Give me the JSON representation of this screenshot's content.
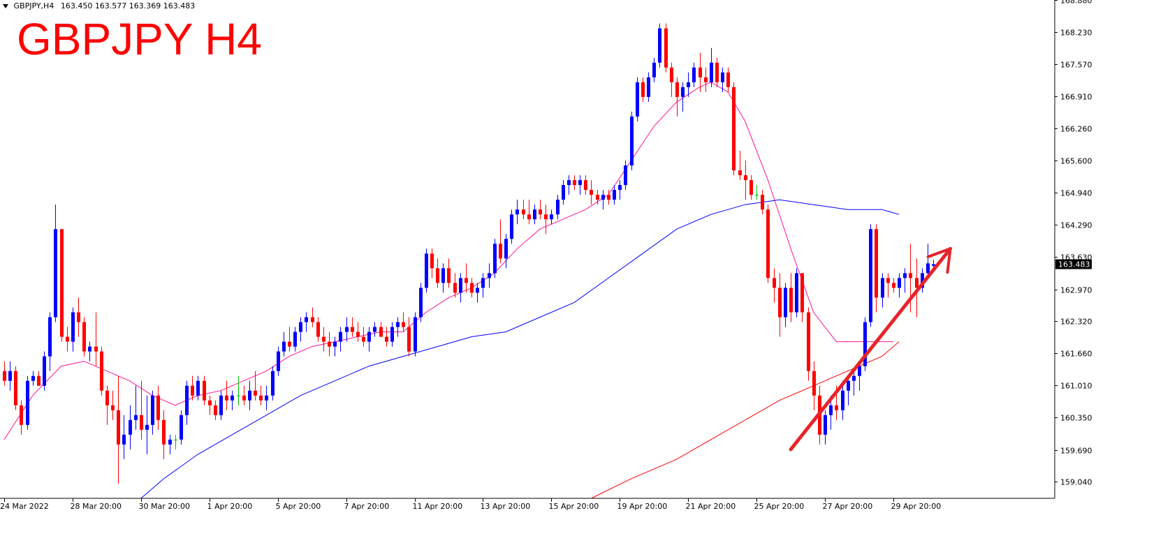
{
  "header": {
    "symbol_line": "GBPJPY,H4",
    "ohlc": "163.450 163.577 163.369 163.483",
    "big_title": "GBPJPY H4"
  },
  "colors": {
    "bull": "#0000ff",
    "bear": "#ff0000",
    "doji": "#00c000",
    "ma_fast": "#ff1493",
    "ma_mid": "#0000ff",
    "ma_slow": "#ff0000",
    "arrow": "#e8232a",
    "current_price_bg": "#000000"
  },
  "chart_data": {
    "type": "candlestick",
    "instrument": "GBPJPY",
    "timeframe": "H4",
    "ylim": [
      158.7,
      168.88
    ],
    "yticks": [
      "168.880",
      "168.230",
      "167.570",
      "166.910",
      "166.260",
      "165.600",
      "164.940",
      "164.290",
      "163.630",
      "162.970",
      "162.320",
      "161.660",
      "161.010",
      "160.350",
      "159.690",
      "159.040"
    ],
    "current_price": "163.483",
    "xtick_labels": [
      "24 Mar 2022",
      "28 Mar 20:00",
      "30 Mar 20:00",
      "1 Apr 20:00",
      "5 Apr 20:00",
      "7 Apr 20:00",
      "11 Apr 20:00",
      "13 Apr 20:00",
      "15 Apr 20:00",
      "19 Apr 20:00",
      "21 Apr 20:00",
      "25 Apr 20:00",
      "27 Apr 20:00",
      "29 Apr 20:00"
    ],
    "xtick_bars": [
      0,
      12,
      24,
      36,
      48,
      60,
      72,
      84,
      96,
      108,
      120,
      132,
      144,
      156
    ],
    "candles": [
      [
        161.3,
        161.5,
        161.0,
        161.1
      ],
      [
        161.1,
        161.5,
        160.9,
        161.3
      ],
      [
        161.3,
        161.4,
        160.5,
        160.6
      ],
      [
        160.6,
        160.7,
        160.0,
        160.2
      ],
      [
        160.2,
        161.2,
        160.1,
        161.1
      ],
      [
        161.1,
        161.3,
        161.0,
        161.2
      ],
      [
        161.2,
        161.3,
        161.0,
        161.0
      ],
      [
        161.0,
        161.7,
        160.9,
        161.6
      ],
      [
        161.6,
        162.5,
        161.3,
        162.4
      ],
      [
        162.4,
        164.7,
        162.3,
        164.2
      ],
      [
        164.2,
        164.2,
        161.9,
        162.0
      ],
      [
        162.0,
        162.2,
        161.7,
        161.9
      ],
      [
        161.9,
        162.6,
        161.7,
        162.5
      ],
      [
        162.5,
        162.8,
        162.0,
        162.3
      ],
      [
        162.3,
        162.4,
        161.6,
        161.7
      ],
      [
        161.7,
        161.9,
        161.5,
        161.8
      ],
      [
        161.8,
        162.5,
        161.4,
        161.7
      ],
      [
        161.7,
        161.8,
        160.8,
        160.9
      ],
      [
        160.9,
        161.0,
        160.2,
        160.6
      ],
      [
        160.6,
        160.9,
        160.3,
        160.5
      ],
      [
        160.5,
        161.2,
        159.0,
        159.8
      ],
      [
        159.8,
        160.4,
        159.5,
        160.0
      ],
      [
        160.0,
        160.6,
        159.7,
        160.3
      ],
      [
        160.3,
        161.0,
        160.1,
        160.4
      ],
      [
        160.4,
        161.1,
        159.9,
        160.1
      ],
      [
        160.1,
        160.8,
        159.6,
        160.2
      ],
      [
        160.2,
        160.9,
        160.0,
        160.8
      ],
      [
        160.8,
        161.0,
        160.1,
        160.3
      ],
      [
        160.3,
        160.5,
        159.5,
        159.8
      ],
      [
        159.8,
        160.0,
        159.6,
        159.9
      ],
      [
        159.9,
        160.0,
        159.7,
        159.9
      ],
      [
        159.9,
        160.5,
        159.8,
        160.4
      ],
      [
        160.4,
        161.1,
        160.2,
        161.0
      ],
      [
        161.0,
        161.2,
        160.7,
        160.8
      ],
      [
        160.8,
        161.2,
        160.7,
        161.1
      ],
      [
        161.1,
        161.2,
        160.6,
        160.7
      ],
      [
        160.7,
        160.8,
        160.4,
        160.6
      ],
      [
        160.6,
        160.7,
        160.3,
        160.4
      ],
      [
        160.4,
        160.9,
        160.3,
        160.8
      ],
      [
        160.8,
        161.1,
        160.5,
        160.7
      ],
      [
        160.7,
        160.9,
        160.5,
        160.8
      ],
      [
        160.8,
        161.2,
        160.6,
        160.8
      ],
      [
        160.8,
        161.0,
        160.6,
        160.7
      ],
      [
        160.7,
        161.1,
        160.5,
        160.9
      ],
      [
        160.9,
        161.3,
        160.7,
        160.8
      ],
      [
        160.8,
        161.0,
        160.6,
        160.7
      ],
      [
        160.7,
        161.0,
        160.5,
        160.8
      ],
      [
        160.8,
        161.4,
        160.7,
        161.3
      ],
      [
        161.3,
        161.8,
        161.2,
        161.7
      ],
      [
        161.7,
        162.1,
        161.6,
        161.9
      ],
      [
        161.9,
        162.2,
        161.7,
        161.8
      ],
      [
        161.8,
        162.2,
        161.7,
        162.1
      ],
      [
        162.1,
        162.4,
        161.9,
        162.3
      ],
      [
        162.3,
        162.5,
        162.1,
        162.4
      ],
      [
        162.4,
        162.6,
        162.2,
        162.3
      ],
      [
        162.3,
        162.4,
        161.9,
        162.0
      ],
      [
        162.0,
        162.2,
        161.7,
        161.9
      ],
      [
        161.9,
        162.1,
        161.6,
        161.8
      ],
      [
        161.8,
        162.0,
        161.6,
        161.9
      ],
      [
        161.9,
        162.2,
        161.7,
        162.1
      ],
      [
        162.1,
        162.4,
        161.9,
        162.2
      ],
      [
        162.2,
        162.4,
        162.0,
        162.1
      ],
      [
        162.1,
        162.3,
        161.9,
        162.0
      ],
      [
        162.0,
        162.2,
        161.8,
        161.9
      ],
      [
        161.9,
        162.2,
        161.7,
        162.1
      ],
      [
        162.1,
        162.3,
        162.0,
        162.2
      ],
      [
        162.2,
        162.3,
        162.0,
        162.0
      ],
      [
        162.0,
        162.2,
        161.8,
        161.9
      ],
      [
        161.9,
        162.3,
        161.8,
        162.2
      ],
      [
        162.2,
        162.4,
        162.0,
        162.3
      ],
      [
        162.3,
        162.5,
        162.1,
        162.2
      ],
      [
        162.2,
        162.4,
        161.6,
        161.7
      ],
      [
        161.7,
        162.5,
        161.6,
        162.4
      ],
      [
        162.4,
        163.1,
        162.3,
        163.0
      ],
      [
        163.0,
        163.8,
        162.9,
        163.7
      ],
      [
        163.7,
        163.8,
        163.2,
        163.4
      ],
      [
        163.4,
        163.6,
        163.0,
        163.1
      ],
      [
        163.1,
        163.5,
        162.9,
        163.4
      ],
      [
        163.4,
        163.6,
        163.0,
        163.1
      ],
      [
        163.1,
        163.3,
        162.8,
        162.9
      ],
      [
        162.9,
        163.3,
        162.7,
        163.2
      ],
      [
        163.2,
        163.5,
        162.9,
        163.1
      ],
      [
        163.1,
        163.2,
        162.8,
        162.9
      ],
      [
        162.9,
        163.1,
        162.7,
        163.0
      ],
      [
        163.0,
        163.3,
        162.8,
        163.2
      ],
      [
        163.2,
        163.5,
        163.0,
        163.3
      ],
      [
        163.3,
        164.0,
        163.2,
        163.9
      ],
      [
        163.9,
        164.4,
        163.5,
        163.6
      ],
      [
        163.6,
        164.1,
        163.4,
        164.0
      ],
      [
        164.0,
        164.6,
        163.9,
        164.5
      ],
      [
        164.5,
        164.8,
        164.3,
        164.6
      ],
      [
        164.6,
        164.8,
        164.4,
        164.5
      ],
      [
        164.5,
        164.8,
        164.3,
        164.4
      ],
      [
        164.4,
        164.7,
        164.3,
        164.6
      ],
      [
        164.6,
        164.8,
        164.4,
        164.5
      ],
      [
        164.5,
        164.7,
        164.1,
        164.4
      ],
      [
        164.4,
        164.6,
        164.3,
        164.5
      ],
      [
        164.5,
        164.9,
        164.4,
        164.8
      ],
      [
        164.8,
        165.2,
        164.7,
        165.1
      ],
      [
        165.1,
        165.3,
        164.9,
        165.2
      ],
      [
        165.2,
        165.3,
        165.0,
        165.1
      ],
      [
        165.1,
        165.3,
        164.9,
        165.2
      ],
      [
        165.2,
        165.3,
        164.9,
        165.0
      ],
      [
        165.0,
        165.2,
        164.7,
        164.9
      ],
      [
        164.9,
        165.0,
        164.7,
        164.8
      ],
      [
        164.8,
        165.0,
        164.6,
        164.9
      ],
      [
        164.9,
        165.0,
        164.7,
        164.8
      ],
      [
        164.8,
        165.1,
        164.7,
        165.0
      ],
      [
        165.0,
        165.2,
        164.8,
        165.1
      ],
      [
        165.1,
        165.6,
        165.0,
        165.5
      ],
      [
        165.5,
        166.6,
        165.4,
        166.5
      ],
      [
        166.5,
        167.3,
        166.4,
        167.2
      ],
      [
        167.2,
        167.3,
        166.8,
        166.9
      ],
      [
        166.9,
        167.4,
        166.8,
        167.3
      ],
      [
        167.3,
        167.7,
        167.2,
        167.6
      ],
      [
        167.6,
        168.4,
        167.5,
        168.3
      ],
      [
        168.3,
        168.4,
        167.4,
        167.5
      ],
      [
        167.5,
        167.6,
        166.9,
        167.2
      ],
      [
        167.2,
        167.3,
        166.5,
        166.9
      ],
      [
        166.9,
        167.2,
        166.6,
        167.1
      ],
      [
        167.1,
        167.4,
        166.9,
        167.2
      ],
      [
        167.2,
        167.6,
        167.1,
        167.5
      ],
      [
        167.5,
        167.8,
        167.0,
        167.3
      ],
      [
        167.3,
        167.5,
        167.0,
        167.2
      ],
      [
        167.2,
        167.9,
        167.1,
        167.6
      ],
      [
        167.6,
        167.7,
        167.1,
        167.2
      ],
      [
        167.2,
        167.5,
        167.0,
        167.4
      ],
      [
        167.4,
        167.5,
        167.0,
        167.1
      ],
      [
        167.1,
        167.2,
        165.3,
        165.4
      ],
      [
        165.4,
        165.8,
        165.2,
        165.3
      ],
      [
        165.3,
        165.6,
        164.8,
        165.2
      ],
      [
        165.2,
        165.3,
        164.8,
        164.9
      ],
      [
        164.9,
        165.1,
        164.8,
        164.9
      ],
      [
        164.9,
        165.0,
        164.5,
        164.6
      ],
      [
        164.6,
        164.7,
        163.1,
        163.2
      ],
      [
        163.2,
        163.4,
        162.7,
        163.0
      ],
      [
        163.0,
        163.3,
        162.0,
        162.4
      ],
      [
        162.4,
        163.1,
        162.2,
        163.0
      ],
      [
        163.0,
        163.3,
        162.3,
        162.5
      ],
      [
        162.5,
        163.4,
        162.4,
        163.3
      ],
      [
        163.3,
        163.3,
        162.3,
        162.5
      ],
      [
        162.5,
        162.6,
        161.1,
        161.3
      ],
      [
        161.3,
        161.5,
        160.5,
        160.8
      ],
      [
        160.8,
        161.0,
        159.8,
        160.0
      ],
      [
        160.0,
        160.5,
        159.8,
        160.4
      ],
      [
        160.4,
        160.8,
        160.1,
        160.6
      ],
      [
        160.6,
        161.0,
        160.3,
        160.5
      ],
      [
        160.5,
        161.1,
        160.3,
        160.9
      ],
      [
        160.9,
        161.2,
        160.6,
        161.1
      ],
      [
        161.1,
        161.3,
        160.8,
        161.2
      ],
      [
        161.2,
        161.5,
        160.9,
        161.4
      ],
      [
        161.4,
        162.4,
        161.3,
        162.3
      ],
      [
        162.3,
        164.3,
        162.2,
        164.2
      ],
      [
        164.2,
        164.3,
        162.5,
        162.8
      ],
      [
        162.8,
        163.3,
        162.6,
        163.2
      ],
      [
        163.2,
        163.3,
        162.8,
        163.1
      ],
      [
        163.1,
        163.2,
        162.9,
        163.0
      ],
      [
        163.0,
        163.3,
        162.8,
        163.2
      ],
      [
        163.2,
        163.4,
        162.9,
        163.3
      ],
      [
        163.3,
        163.9,
        162.5,
        163.2
      ],
      [
        163.2,
        163.6,
        162.4,
        163.0
      ],
      [
        163.0,
        163.4,
        162.9,
        163.3
      ],
      [
        163.3,
        163.9,
        163.2,
        163.5
      ],
      [
        163.45,
        163.577,
        163.369,
        163.483
      ]
    ],
    "moving_averages": {
      "fast": [
        [
          0,
          159.9
        ],
        [
          5,
          160.8
        ],
        [
          10,
          161.4
        ],
        [
          14,
          161.5
        ],
        [
          18,
          161.3
        ],
        [
          22,
          161.1
        ],
        [
          26,
          160.8
        ],
        [
          30,
          160.6
        ],
        [
          34,
          160.8
        ],
        [
          38,
          160.9
        ],
        [
          42,
          161.1
        ],
        [
          46,
          161.3
        ],
        [
          50,
          161.6
        ],
        [
          54,
          161.8
        ],
        [
          58,
          161.9
        ],
        [
          62,
          162.0
        ],
        [
          66,
          162.1
        ],
        [
          70,
          162.1
        ],
        [
          74,
          162.5
        ],
        [
          78,
          162.8
        ],
        [
          82,
          163.0
        ],
        [
          86,
          163.3
        ],
        [
          90,
          163.8
        ],
        [
          94,
          164.2
        ],
        [
          98,
          164.4
        ],
        [
          102,
          164.6
        ],
        [
          106,
          164.9
        ],
        [
          110,
          165.6
        ],
        [
          114,
          166.3
        ],
        [
          118,
          166.8
        ],
        [
          122,
          167.1
        ],
        [
          124,
          167.2
        ],
        [
          127,
          167.0
        ],
        [
          130,
          166.4
        ],
        [
          134,
          165.2
        ],
        [
          138,
          163.8
        ],
        [
          142,
          162.5
        ],
        [
          146,
          161.9
        ],
        [
          150,
          161.9
        ],
        [
          156,
          161.9
        ]
      ],
      "mid": [
        [
          24,
          158.7
        ],
        [
          28,
          159.1
        ],
        [
          34,
          159.6
        ],
        [
          40,
          160.0
        ],
        [
          46,
          160.4
        ],
        [
          52,
          160.8
        ],
        [
          58,
          161.1
        ],
        [
          64,
          161.4
        ],
        [
          70,
          161.6
        ],
        [
          76,
          161.8
        ],
        [
          82,
          162.0
        ],
        [
          88,
          162.1
        ],
        [
          94,
          162.4
        ],
        [
          100,
          162.7
        ],
        [
          106,
          163.2
        ],
        [
          112,
          163.7
        ],
        [
          118,
          164.2
        ],
        [
          124,
          164.5
        ],
        [
          130,
          164.7
        ],
        [
          136,
          164.8
        ],
        [
          142,
          164.7
        ],
        [
          148,
          164.6
        ],
        [
          154,
          164.6
        ],
        [
          157,
          164.5
        ]
      ],
      "slow": [
        [
          103,
          158.7
        ],
        [
          110,
          159.1
        ],
        [
          118,
          159.5
        ],
        [
          124,
          159.9
        ],
        [
          130,
          160.3
        ],
        [
          136,
          160.7
        ],
        [
          142,
          161.0
        ],
        [
          148,
          161.3
        ],
        [
          154,
          161.6
        ],
        [
          157,
          161.9
        ]
      ]
    },
    "trend_arrow": {
      "from": [
        138,
        159.7
      ],
      "to": [
        166,
        163.8
      ]
    }
  }
}
